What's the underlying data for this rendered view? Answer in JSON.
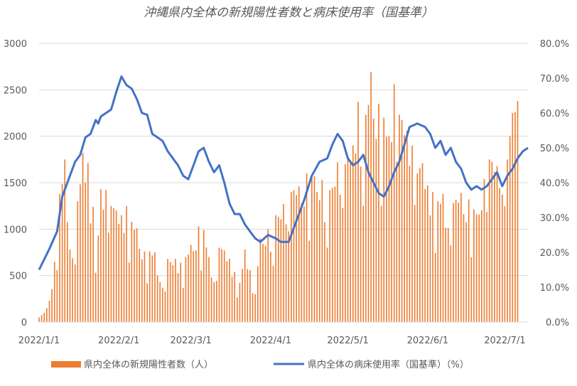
{
  "chart_data": {
    "type": "bar+line",
    "title": "沖縄県内全体の新規陽性者数と病床使用率（国基準）",
    "legend": {
      "placement": "bottom",
      "bar_label": "県内全体の新規陽性者数（人）",
      "line_label": "県内全体の病床使用率（国基準）（%）"
    },
    "colors": {
      "bar": "#ED7D31",
      "line": "#4472C4",
      "grid": "#D9D9D9",
      "text": "#595959"
    },
    "x_axis": {
      "start_date": "2022/1/1",
      "end_date": "2022/7/1",
      "tick_labels": [
        "2022/1/1",
        "2022/2/1",
        "2022/3/1",
        "2022/4/1",
        "2022/5/1",
        "2022/6/1",
        "2022/7/1"
      ],
      "tick_days": [
        0,
        31,
        59,
        90,
        120,
        151,
        181
      ]
    },
    "y_left": {
      "min": 0,
      "max": 3000,
      "step": 500,
      "tick_labels": [
        "0",
        "500",
        "1000",
        "1500",
        "2000",
        "2500",
        "3000"
      ]
    },
    "y_right": {
      "min": 0,
      "max": 80,
      "step": 10,
      "tick_labels": [
        "0.0%",
        "10.0%",
        "20.0%",
        "30.0%",
        "40.0%",
        "50.0%",
        "60.0%",
        "70.0%",
        "80.0%"
      ]
    },
    "bar_anchors": [
      [
        "2022/1/1",
        50
      ],
      [
        "2022/1/3",
        100
      ],
      [
        "2022/1/5",
        230
      ],
      [
        "2022/1/7",
        650
      ],
      [
        "2022/1/9",
        1380
      ],
      [
        "2022/1/11",
        1750
      ],
      [
        "2022/1/13",
        780
      ],
      [
        "2022/1/16",
        1300
      ],
      [
        "2022/1/18",
        1820
      ],
      [
        "2022/1/20",
        1710
      ],
      [
        "2022/1/22",
        1240
      ],
      [
        "2022/1/23",
        530
      ],
      [
        "2022/1/25",
        1430
      ],
      [
        "2022/1/27",
        1420
      ],
      [
        "2022/1/29",
        1250
      ],
      [
        "2022/1/31",
        1200
      ],
      [
        "2022/2/2",
        1150
      ],
      [
        "2022/2/4",
        1250
      ],
      [
        "2022/2/6",
        1080
      ],
      [
        "2022/2/8",
        1010
      ],
      [
        "2022/2/11",
        760
      ],
      [
        "2022/2/13",
        760
      ],
      [
        "2022/2/15",
        750
      ],
      [
        "2022/2/17",
        430
      ],
      [
        "2022/2/20",
        680
      ],
      [
        "2022/2/23",
        680
      ],
      [
        "2022/2/25",
        640
      ],
      [
        "2022/2/27",
        700
      ],
      [
        "2022/3/1",
        830
      ],
      [
        "2022/3/4",
        1030
      ],
      [
        "2022/3/6",
        990
      ],
      [
        "2022/3/8",
        700
      ],
      [
        "2022/3/10",
        430
      ],
      [
        "2022/3/12",
        800
      ],
      [
        "2022/3/14",
        770
      ],
      [
        "2022/3/16",
        680
      ],
      [
        "2022/3/18",
        540
      ],
      [
        "2022/3/20",
        420
      ],
      [
        "2022/3/22",
        780
      ],
      [
        "2022/3/24",
        560
      ],
      [
        "2022/3/26",
        300
      ],
      [
        "2022/3/28",
        900
      ],
      [
        "2022/3/31",
        1000
      ],
      [
        "2022/4/3",
        1150
      ],
      [
        "2022/4/6",
        1270
      ],
      [
        "2022/4/9",
        1400
      ],
      [
        "2022/4/12",
        1460
      ],
      [
        "2022/4/15",
        1600
      ],
      [
        "2022/4/18",
        1570
      ],
      [
        "2022/4/21",
        1530
      ],
      [
        "2022/4/24",
        1420
      ],
      [
        "2022/4/27",
        1720
      ],
      [
        "2022/4/30",
        1700
      ],
      [
        "2022/5/3",
        1900
      ],
      [
        "2022/5/5",
        2370
      ],
      [
        "2022/5/8",
        2230
      ],
      [
        "2022/5/10",
        2690
      ],
      [
        "2022/5/13",
        2350
      ],
      [
        "2022/5/15",
        2200
      ],
      [
        "2022/5/17",
        2000
      ],
      [
        "2022/5/19",
        2560
      ],
      [
        "2022/5/21",
        2230
      ],
      [
        "2022/5/24",
        2060
      ],
      [
        "2022/5/26",
        1900
      ],
      [
        "2022/5/28",
        1600
      ],
      [
        "2022/5/30",
        1710
      ],
      [
        "2022/6/1",
        1470
      ],
      [
        "2022/6/3",
        1400
      ],
      [
        "2022/6/5",
        1300
      ],
      [
        "2022/6/7",
        1380
      ],
      [
        "2022/6/9",
        1010
      ],
      [
        "2022/6/11",
        1280
      ],
      [
        "2022/6/14",
        1390
      ],
      [
        "2022/6/17",
        1320
      ],
      [
        "2022/6/20",
        1160
      ],
      [
        "2022/6/23",
        1540
      ],
      [
        "2022/6/25",
        1750
      ],
      [
        "2022/6/28",
        1680
      ],
      [
        "2022/7/2",
        1750
      ],
      [
        "2022/7/4",
        2250
      ],
      [
        "2022/7/5",
        2260
      ],
      [
        "2022/7/6",
        2380
      ]
    ],
    "line_anchors": [
      [
        "2022/1/1",
        15
      ],
      [
        "2022/1/3",
        18
      ],
      [
        "2022/1/5",
        21
      ],
      [
        "2022/1/8",
        26
      ],
      [
        "2022/1/10",
        36
      ],
      [
        "2022/1/12",
        40
      ],
      [
        "2022/1/15",
        46
      ],
      [
        "2022/1/17",
        48
      ],
      [
        "2022/1/19",
        53
      ],
      [
        "2022/1/21",
        54
      ],
      [
        "2022/1/23",
        58
      ],
      [
        "2022/1/24",
        57
      ],
      [
        "2022/1/25",
        59
      ],
      [
        "2022/1/27",
        60
      ],
      [
        "2022/1/29",
        61
      ],
      [
        "2022/1/31",
        66
      ],
      [
        "2022/2/2",
        70.5
      ],
      [
        "2022/2/4",
        68
      ],
      [
        "2022/2/6",
        67
      ],
      [
        "2022/2/8",
        64
      ],
      [
        "2022/2/10",
        60
      ],
      [
        "2022/2/12",
        59.5
      ],
      [
        "2022/2/14",
        54
      ],
      [
        "2022/2/16",
        53
      ],
      [
        "2022/2/18",
        52
      ],
      [
        "2022/2/20",
        49
      ],
      [
        "2022/2/22",
        47
      ],
      [
        "2022/2/24",
        45
      ],
      [
        "2022/2/26",
        42
      ],
      [
        "2022/2/28",
        41
      ],
      [
        "2022/3/2",
        45
      ],
      [
        "2022/3/4",
        49
      ],
      [
        "2022/3/6",
        50
      ],
      [
        "2022/3/8",
        46
      ],
      [
        "2022/3/10",
        43
      ],
      [
        "2022/3/12",
        45
      ],
      [
        "2022/3/14",
        40
      ],
      [
        "2022/3/16",
        34
      ],
      [
        "2022/3/18",
        31
      ],
      [
        "2022/3/20",
        31
      ],
      [
        "2022/3/22",
        28
      ],
      [
        "2022/3/24",
        26
      ],
      [
        "2022/3/26",
        24
      ],
      [
        "2022/3/28",
        23
      ],
      [
        "2022/3/31",
        25
      ],
      [
        "2022/4/3",
        24
      ],
      [
        "2022/4/5",
        23
      ],
      [
        "2022/4/8",
        23
      ],
      [
        "2022/4/11",
        29
      ],
      [
        "2022/4/14",
        35
      ],
      [
        "2022/4/17",
        42
      ],
      [
        "2022/4/20",
        46
      ],
      [
        "2022/4/23",
        47
      ],
      [
        "2022/4/25",
        51
      ],
      [
        "2022/4/27",
        54
      ],
      [
        "2022/4/29",
        52
      ],
      [
        "2022/5/1",
        47
      ],
      [
        "2022/5/3",
        45
      ],
      [
        "2022/5/5",
        46
      ],
      [
        "2022/5/7",
        48
      ],
      [
        "2022/5/9",
        43
      ],
      [
        "2022/5/11",
        40
      ],
      [
        "2022/5/13",
        37
      ],
      [
        "2022/5/15",
        36
      ],
      [
        "2022/5/17",
        39
      ],
      [
        "2022/5/19",
        43
      ],
      [
        "2022/5/21",
        46
      ],
      [
        "2022/5/23",
        51
      ],
      [
        "2022/5/25",
        56
      ],
      [
        "2022/5/28",
        57
      ],
      [
        "2022/5/31",
        56
      ],
      [
        "2022/6/2",
        54
      ],
      [
        "2022/6/4",
        50
      ],
      [
        "2022/6/6",
        52
      ],
      [
        "2022/6/8",
        48
      ],
      [
        "2022/6/10",
        50
      ],
      [
        "2022/6/12",
        46
      ],
      [
        "2022/6/14",
        44
      ],
      [
        "2022/6/16",
        40
      ],
      [
        "2022/6/18",
        38
      ],
      [
        "2022/6/20",
        39
      ],
      [
        "2022/6/22",
        38
      ],
      [
        "2022/6/24",
        39
      ],
      [
        "2022/6/26",
        41
      ],
      [
        "2022/6/28",
        43
      ],
      [
        "2022/6/30",
        39
      ],
      [
        "2022/7/2",
        42
      ],
      [
        "2022/7/4",
        44
      ],
      [
        "2022/7/6",
        47
      ],
      [
        "2022/7/8",
        49
      ],
      [
        "2022/7/10",
        50
      ]
    ]
  }
}
